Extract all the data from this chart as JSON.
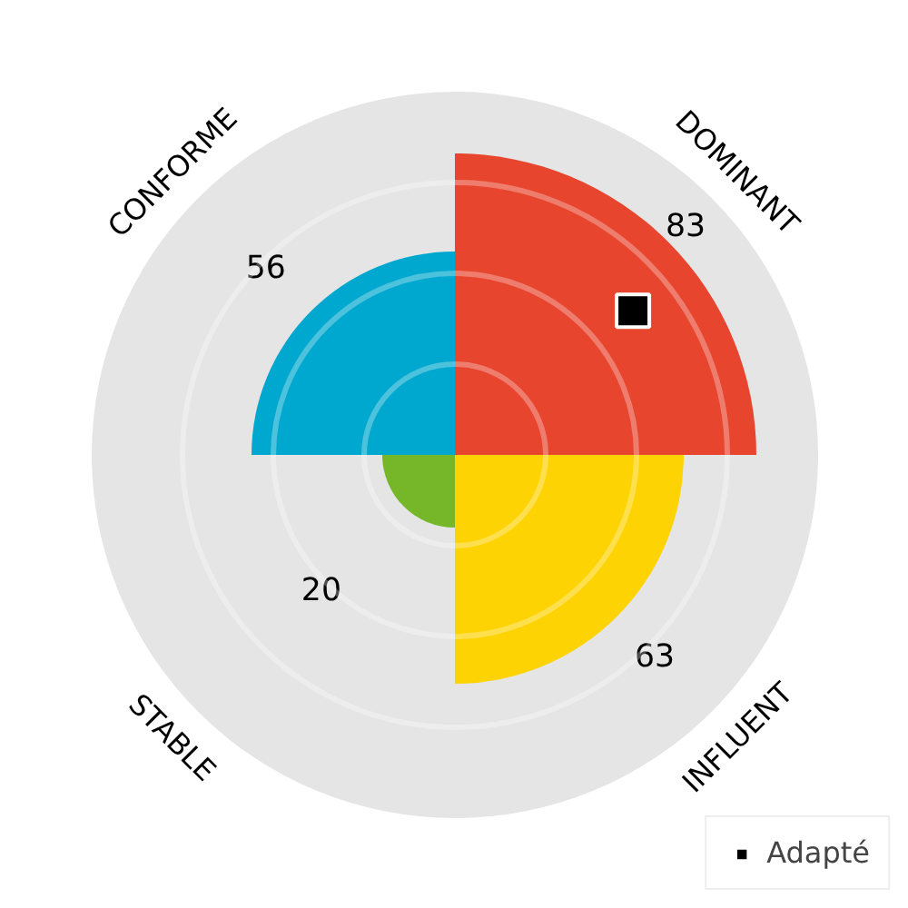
{
  "chart_data": {
    "type": "other",
    "categories": [
      "DOMINANT",
      "INFLUENT",
      "STABLE",
      "CONFORME"
    ],
    "series": [
      {
        "type": "bar",
        "colors": [
          "#e8452f",
          "#fed304",
          "#76b72a",
          "#00a8cf"
        ],
        "values": [
          83,
          63,
          20,
          56
        ],
        "value_labels": [
          "83",
          "63",
          "20",
          "56"
        ]
      },
      {
        "type": "scatter",
        "name": "Adapté",
        "color": "#000000",
        "marker": "square",
        "x": [
          "DOMINANT"
        ],
        "values": [
          null
        ]
      }
    ],
    "legend": "bottom right"
  }
}
